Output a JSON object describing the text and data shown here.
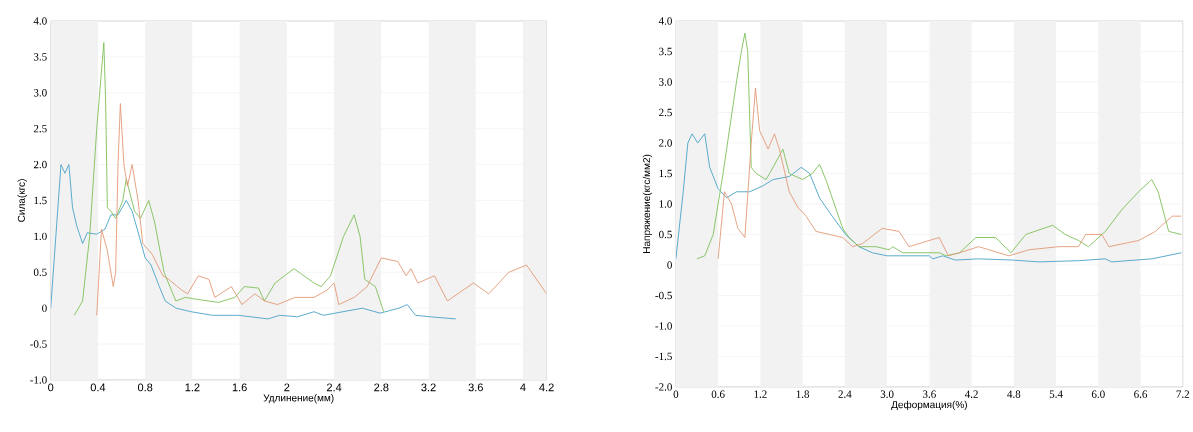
{
  "chart_data": [
    {
      "type": "line",
      "xlabel": "Удлинение(мм)",
      "ylabel": "Сила(кгс)",
      "xlim": [
        0,
        4.2
      ],
      "ylim": [
        -1,
        4
      ],
      "xticks": [
        0,
        0.4,
        0.8,
        1.2,
        1.6,
        2,
        2.4,
        2.8,
        3.2,
        3.6,
        4,
        4.2
      ],
      "yticks": [
        {
          "value": -1,
          "label": "-1.0"
        },
        -0.5,
        0,
        0.5,
        {
          "value": 1,
          "label": "1.0"
        },
        1.5,
        {
          "value": 2,
          "label": "2.0"
        },
        2.5,
        {
          "value": 3,
          "label": "3.0"
        },
        3.5,
        {
          "value": 4,
          "label": "4.0"
        }
      ],
      "grid": "y",
      "bands": [
        {
          "axis": "x",
          "from": 0,
          "to": 0.4,
          "color": "#f2f2f2"
        },
        {
          "axis": "x",
          "from": 0.8,
          "to": 1.2,
          "color": "#f2f2f2"
        },
        {
          "axis": "x",
          "from": 1.6,
          "to": 2,
          "color": "#f2f2f2"
        },
        {
          "axis": "x",
          "from": 2.4,
          "to": 2.8,
          "color": "#f2f2f2"
        },
        {
          "axis": "x",
          "from": 3.2,
          "to": 3.6,
          "color": "#f2f2f2"
        },
        {
          "axis": "x",
          "from": 4,
          "to": 4.2,
          "color": "#f2f2f2"
        }
      ],
      "series": [
        {
          "color": "#4aa3c8",
          "x": [
            0,
            0.087,
            0.12,
            0.154,
            0.185,
            0.22,
            0.27,
            0.31,
            0.39,
            0.46,
            0.51,
            0.57,
            0.64,
            0.69,
            0.75,
            0.8,
            0.85,
            0.92,
            0.97,
            1.06,
            1.19,
            1.37,
            1.59,
            1.84,
            1.94,
            2.09,
            2.23,
            2.31,
            2.64,
            2.79,
            2.95,
            3.02,
            3.09,
            3.21,
            3.43
          ],
          "values": [
            0,
            2.0,
            1.88,
            2.0,
            1.4,
            1.15,
            0.9,
            1.05,
            1.03,
            1.1,
            1.3,
            1.3,
            1.5,
            1.35,
            1.0,
            0.7,
            0.6,
            0.3,
            0.1,
            0,
            -0.05,
            -0.1,
            -0.1,
            -0.15,
            -0.1,
            -0.12,
            -0.05,
            -0.1,
            0,
            -0.07,
            0,
            0.05,
            -0.1,
            -0.12,
            -0.15
          ]
        },
        {
          "color": "#7fbf5a",
          "x": [
            0.2,
            0.27,
            0.33,
            0.39,
            0.45,
            0.465,
            0.48,
            0.51,
            0.55,
            0.61,
            0.64,
            0.71,
            0.76,
            0.83,
            0.88,
            0.96,
            1.06,
            1.14,
            1.25,
            1.42,
            1.56,
            1.64,
            1.76,
            1.81,
            1.9,
            2.06,
            2.23,
            2.29,
            2.37,
            2.48,
            2.57,
            2.62,
            2.66,
            2.75,
            2.82
          ],
          "values": [
            -0.1,
            0.1,
            1.0,
            2.5,
            3.7,
            2.9,
            1.4,
            1.35,
            1.25,
            1.5,
            1.8,
            1.35,
            1.25,
            1.5,
            1.2,
            0.5,
            0.1,
            0.15,
            0.12,
            0.08,
            0.15,
            0.3,
            0.28,
            0.1,
            0.35,
            0.55,
            0.35,
            0.3,
            0.45,
            1.0,
            1.3,
            1.0,
            0.4,
            0.3,
            -0.05
          ]
        },
        {
          "color": "#e29a76",
          "x": [
            0.39,
            0.43,
            0.48,
            0.53,
            0.55,
            0.57,
            0.59,
            0.62,
            0.65,
            0.69,
            0.74,
            0.78,
            0.86,
            0.95,
            1.0,
            1.11,
            1.16,
            1.25,
            1.34,
            1.39,
            1.53,
            1.62,
            1.73,
            1.81,
            1.92,
            2.07,
            2.23,
            2.34,
            2.4,
            2.44,
            2.57,
            2.68,
            2.8,
            2.94,
            3.01,
            3.05,
            3.11,
            3.25,
            3.36,
            3.58,
            3.71,
            3.88,
            4.03,
            4.2
          ],
          "values": [
            -0.1,
            1.1,
            0.8,
            0.3,
            0.5,
            2.0,
            2.85,
            2.0,
            1.7,
            2.0,
            1.5,
            0.9,
            0.75,
            0.45,
            0.4,
            0.25,
            0.2,
            0.45,
            0.4,
            0.15,
            0.3,
            0.05,
            0.2,
            0.1,
            0.05,
            0.15,
            0.15,
            0.25,
            0.35,
            0.05,
            0.15,
            0.3,
            0.7,
            0.65,
            0.45,
            0.55,
            0.35,
            0.45,
            0.1,
            0.35,
            0.2,
            0.5,
            0.6,
            0.2
          ]
        }
      ]
    },
    {
      "type": "line",
      "xlabel": "Деформация(%)",
      "ylabel": "Напряжение(кгс/мм2)",
      "xlim": [
        0,
        7.2
      ],
      "ylim": [
        -2,
        4
      ],
      "xticks": [
        0,
        0.6,
        1.2,
        1.8,
        2.4,
        {
          "value": 3,
          "label": "3.0"
        },
        3.6,
        4.2,
        4.8,
        5.4,
        {
          "value": 6,
          "label": "6.0"
        },
        6.6,
        7.2
      ],
      "yticks": [
        {
          "value": -2,
          "label": "-2.0"
        },
        -1.5,
        {
          "value": -1,
          "label": "-1.0"
        },
        -0.5,
        0,
        0.5,
        {
          "value": 1,
          "label": "1.0"
        },
        1.5,
        {
          "value": 2,
          "label": "2.0"
        },
        2.5,
        {
          "value": 3,
          "label": "3.0"
        },
        3.5,
        {
          "value": 4,
          "label": "4.0"
        }
      ],
      "grid": "y",
      "bands": [
        {
          "axis": "x",
          "from": 0,
          "to": 0.6,
          "color": "#f2f2f2"
        },
        {
          "axis": "x",
          "from": 1.2,
          "to": 1.8,
          "color": "#f2f2f2"
        },
        {
          "axis": "x",
          "from": 2.4,
          "to": 3,
          "color": "#f2f2f2"
        },
        {
          "axis": "x",
          "from": 3.6,
          "to": 4.2,
          "color": "#f2f2f2"
        },
        {
          "axis": "x",
          "from": 4.8,
          "to": 5.4,
          "color": "#f2f2f2"
        },
        {
          "axis": "x",
          "from": 6,
          "to": 6.6,
          "color": "#f2f2f2"
        }
      ],
      "series": [
        {
          "color": "#4aa3c8",
          "x": [
            0,
            0.104,
            0.17,
            0.23,
            0.31,
            0.41,
            0.48,
            0.6,
            0.72,
            0.86,
            1.05,
            1.24,
            1.38,
            1.61,
            1.78,
            1.9,
            2.04,
            2.22,
            2.41,
            2.6,
            2.79,
            3.0,
            3.6,
            3.65,
            3.79,
            3.97,
            4.3,
            4.78,
            5.16,
            5.72,
            6.1,
            6.19,
            6.76,
            7.18
          ],
          "values": [
            0.1,
            1.2,
            2.0,
            2.15,
            2.0,
            2.15,
            1.6,
            1.25,
            1.1,
            1.2,
            1.2,
            1.3,
            1.4,
            1.45,
            1.6,
            1.5,
            1.1,
            0.8,
            0.5,
            0.3,
            0.2,
            0.15,
            0.15,
            0.1,
            0.15,
            0.08,
            0.1,
            0.08,
            0.05,
            0.07,
            0.1,
            0.05,
            0.1,
            0.2
          ]
        },
        {
          "color": "#7fbf5a",
          "x": [
            0.3,
            0.41,
            0.53,
            0.67,
            0.86,
            0.93,
            0.98,
            1.02,
            1.07,
            1.14,
            1.28,
            1.38,
            1.52,
            1.61,
            1.8,
            1.94,
            2.04,
            2.13,
            2.28,
            2.37,
            2.46,
            2.6,
            2.84,
            3.03,
            3.08,
            3.22,
            3.74,
            3.84,
            4.03,
            4.26,
            4.54,
            4.76,
            4.97,
            5.35,
            5.53,
            5.72,
            5.86,
            6.1,
            6.33,
            6.57,
            6.76,
            6.85,
            7.0,
            7.18
          ],
          "values": [
            0.1,
            0.15,
            0.5,
            1.5,
            3.0,
            3.5,
            3.8,
            3.5,
            1.6,
            1.5,
            1.4,
            1.6,
            1.9,
            1.5,
            1.4,
            1.5,
            1.65,
            1.4,
            0.9,
            0.6,
            0.45,
            0.3,
            0.3,
            0.25,
            0.3,
            0.2,
            0.2,
            0.15,
            0.2,
            0.45,
            0.45,
            0.2,
            0.5,
            0.65,
            0.5,
            0.4,
            0.3,
            0.55,
            0.9,
            1.2,
            1.4,
            1.2,
            0.55,
            0.5
          ]
        },
        {
          "color": "#e29a76",
          "x": [
            0.6,
            0.69,
            0.79,
            0.88,
            0.98,
            1.07,
            1.13,
            1.19,
            1.31,
            1.4,
            1.47,
            1.61,
            1.73,
            1.85,
            1.99,
            2.18,
            2.37,
            2.51,
            2.65,
            2.93,
            3.17,
            3.31,
            3.74,
            3.87,
            4.03,
            4.3,
            4.73,
            5.02,
            5.44,
            5.72,
            5.82,
            6.05,
            6.15,
            6.57,
            6.81,
            7.05,
            7.18
          ],
          "values": [
            0.1,
            1.2,
            1.0,
            0.6,
            0.45,
            2.0,
            2.9,
            2.2,
            1.9,
            2.15,
            1.9,
            1.2,
            0.95,
            0.8,
            0.55,
            0.5,
            0.45,
            0.3,
            0.35,
            0.6,
            0.55,
            0.3,
            0.45,
            0.15,
            0.2,
            0.3,
            0.15,
            0.25,
            0.3,
            0.3,
            0.5,
            0.5,
            0.3,
            0.4,
            0.55,
            0.8,
            0.8
          ]
        }
      ]
    }
  ]
}
